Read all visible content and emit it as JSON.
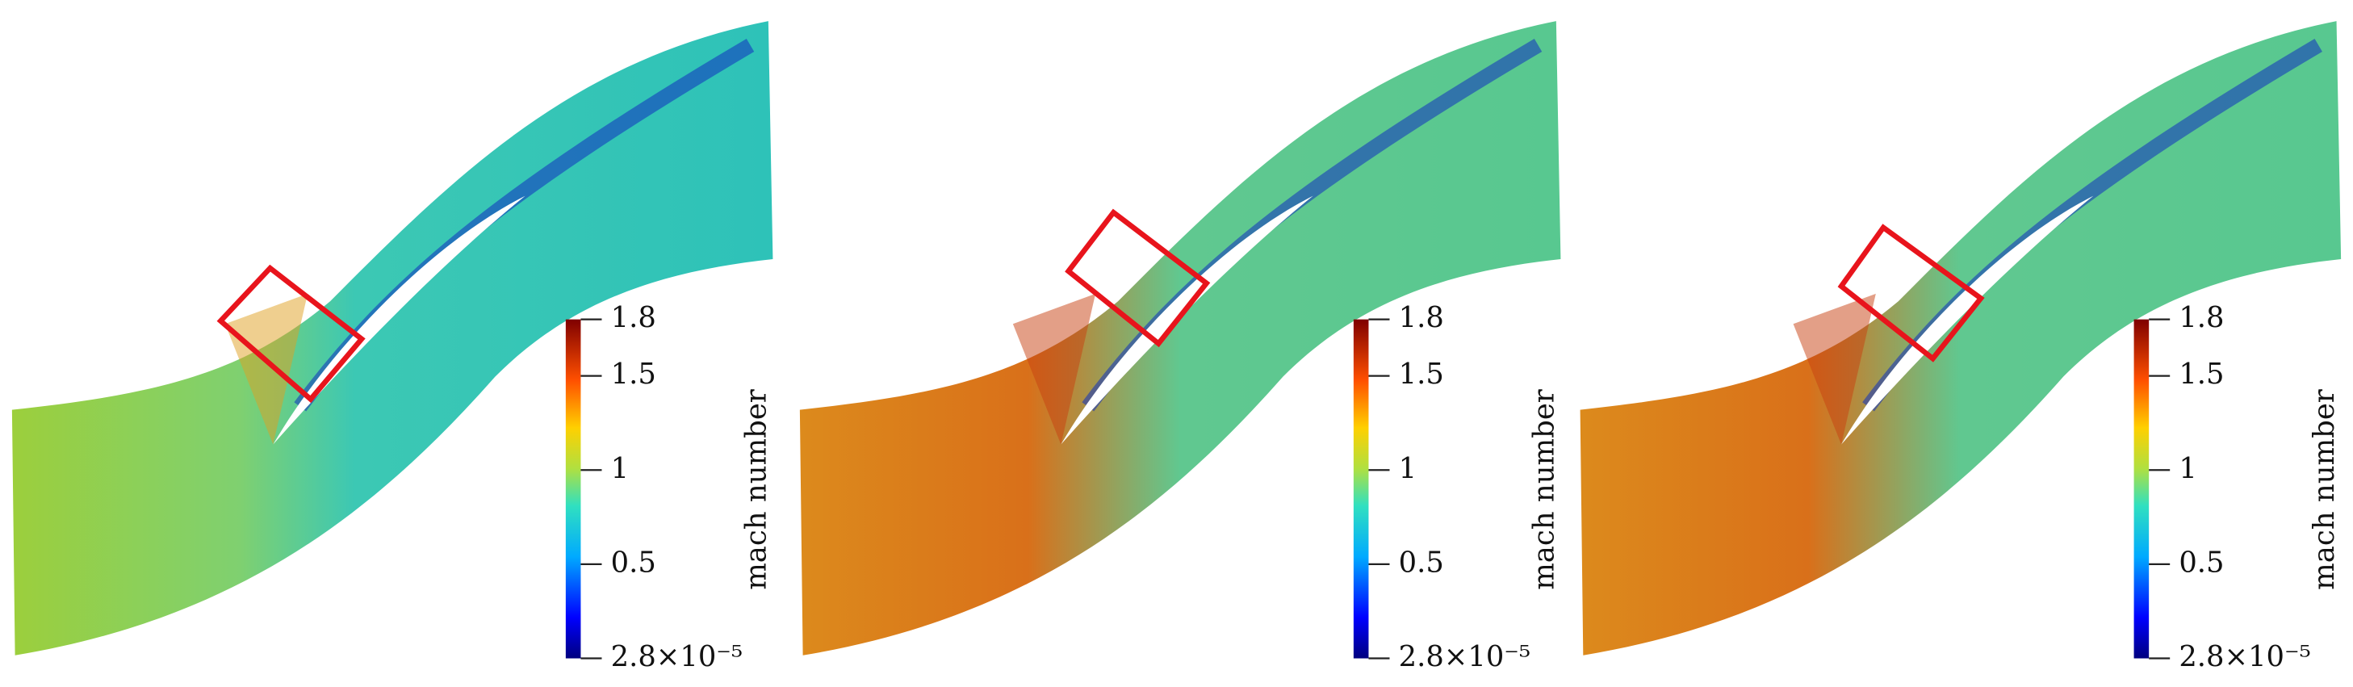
{
  "panels": [
    {
      "colorbar": {
        "label": "mach number",
        "ticks": [
          {
            "value": 1.8,
            "label": "1.8"
          },
          {
            "value": 1.5,
            "label": "1.5"
          },
          {
            "value": 1,
            "label": "1"
          },
          {
            "value": 0.5,
            "label": "0.5"
          },
          {
            "value": 2.8e-05,
            "label": "2.8×10⁻⁵"
          }
        ]
      }
    },
    {
      "colorbar": {
        "label": "mach number",
        "ticks": [
          {
            "value": 1.8,
            "label": "1.8"
          },
          {
            "value": 1.5,
            "label": "1.5"
          },
          {
            "value": 1,
            "label": "1"
          },
          {
            "value": 0.5,
            "label": "0.5"
          },
          {
            "value": 2.8e-05,
            "label": "2.8×10⁻⁵"
          }
        ]
      }
    },
    {
      "colorbar": {
        "label": "mach number",
        "ticks": [
          {
            "value": 1.8,
            "label": "1.8"
          },
          {
            "value": 1.5,
            "label": "1.5"
          },
          {
            "value": 1,
            "label": "1"
          },
          {
            "value": 0.5,
            "label": "0.5"
          },
          {
            "value": 2.8e-05,
            "label": "2.8×10⁻⁵"
          }
        ]
      }
    }
  ]
}
